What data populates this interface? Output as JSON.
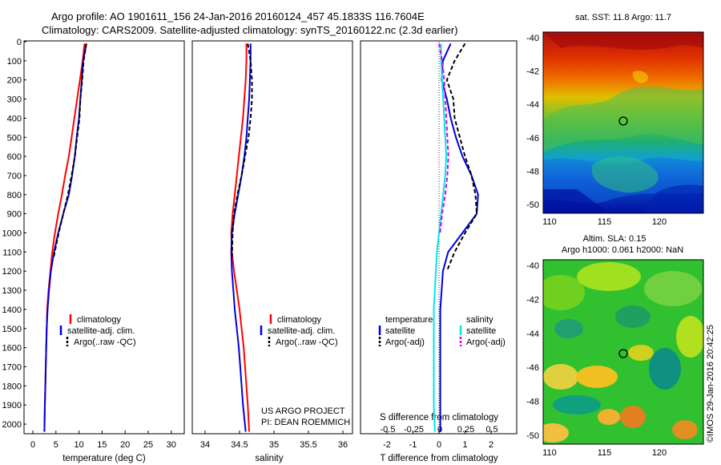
{
  "header": {
    "title_line1": "Argo profile: AO 1901611_156 24-Jan-2016 20160124_457 45.1833S 116.7604E",
    "title_line2": "Climatology: CARS2009. Satellite-adjusted climatology: synTS_20160122.nc (2.3d earlier)"
  },
  "colors": {
    "climatology": "#ff0000",
    "satellite": "#0000dd",
    "argo": "#000000",
    "sal_satellite": "#00e5ee",
    "sal_argo": "#dd00dd"
  },
  "panels": {
    "temperature": {
      "xlabel": "temperature (deg C)",
      "xticks": [
        "0",
        "5",
        "10",
        "15",
        "20",
        "25",
        "30"
      ],
      "legend": [
        "climatology",
        "satellite-adj. clim.",
        "Argo(..raw -QC)"
      ]
    },
    "salinity": {
      "xlabel": "salinity",
      "xticks": [
        "34",
        "34.5",
        "35",
        "35.5",
        "36"
      ],
      "legend": [
        "climatology",
        "satellite-adj. clim.",
        "Argo(..raw -QC)"
      ],
      "credit_line1": "US ARGO PROJECT",
      "credit_line2": "PI: DEAN ROEMMICH"
    },
    "difference": {
      "xlabel": "T difference from climatology",
      "top_label": "S difference from climatology",
      "xticks_T": [
        "-2",
        "-1",
        "0",
        "1",
        "2"
      ],
      "xticks_S": [
        "-0.5",
        "-0.25",
        "0",
        "0.25",
        "0.5"
      ],
      "legend_temperature_title": "temperature",
      "legend_salinity_title": "salinity",
      "legend_items": [
        "satellite",
        "Argo(-adj)",
        "satellite",
        "Argo(-adj)"
      ]
    },
    "depth_ticks": [
      "0",
      "100",
      "200",
      "300",
      "400",
      "500",
      "600",
      "700",
      "800",
      "900",
      "1000",
      "1100",
      "1200",
      "1300",
      "1400",
      "1500",
      "1600",
      "1700",
      "1800",
      "1900",
      "2000"
    ]
  },
  "maps": {
    "sst_title": "sat. SST: 11.8 Argo: 11.7",
    "sla_title_line1": "Altim. SLA: 0.15",
    "sla_title_line2": "Argo h1000: 0.061 h2000: NaN",
    "lat_ticks": [
      "-40",
      "-42",
      "-44",
      "-46",
      "-48",
      "-50"
    ],
    "lon_ticks": [
      "110",
      "115",
      "120"
    ],
    "watermark": "©IMOS 29-Jan-2016 20:42:25"
  },
  "chart_data": [
    {
      "type": "line",
      "xlabel": "temperature (deg C)",
      "ylabel": "",
      "xlim": [
        -1,
        31
      ],
      "ylim": [
        2050,
        0
      ],
      "series": [
        {
          "name": "climatology",
          "x": [
            11.2,
            10.8,
            10.2,
            9.6,
            9.0,
            8.4,
            7.8,
            7.0,
            6.3,
            5.5,
            4.8,
            4.2,
            3.8,
            3.4,
            3.1,
            3.0,
            2.9,
            2.8,
            2.7,
            2.6,
            2.5
          ],
          "y": [
            10,
            100,
            200,
            300,
            400,
            500,
            600,
            700,
            800,
            900,
            1000,
            1100,
            1200,
            1300,
            1400,
            1500,
            1600,
            1700,
            1800,
            1900,
            2040
          ]
        },
        {
          "name": "satellite-adj. clim.",
          "x": [
            11.6,
            10.9,
            10.6,
            10.3,
            10.0,
            9.5,
            9.1,
            8.5,
            7.8,
            6.6,
            5.5,
            4.6,
            3.9,
            3.5,
            3.2,
            3.0,
            2.9,
            2.8,
            2.7,
            2.6,
            2.5
          ],
          "y": [
            10,
            100,
            200,
            300,
            400,
            500,
            600,
            700,
            800,
            900,
            1000,
            1100,
            1200,
            1300,
            1400,
            1500,
            1600,
            1700,
            1800,
            1900,
            2040
          ]
        },
        {
          "name": "Argo(..raw -QC)",
          "x": [
            11.6,
            11.0,
            10.7,
            10.3,
            10.1,
            9.6,
            9.1,
            8.4,
            7.6,
            6.6,
            5.6,
            4.5
          ],
          "y": [
            10,
            100,
            200,
            300,
            400,
            500,
            600,
            700,
            800,
            900,
            1000,
            1130
          ]
        }
      ]
    },
    {
      "type": "line",
      "xlabel": "salinity",
      "ylabel": "",
      "xlim": [
        33.85,
        36.1
      ],
      "ylim": [
        2050,
        0
      ],
      "series": [
        {
          "name": "climatology",
          "x": [
            34.6,
            34.6,
            34.59,
            34.57,
            34.55,
            34.52,
            34.49,
            34.46,
            34.43,
            34.4,
            34.38,
            34.39,
            34.42,
            34.46,
            34.5,
            34.53,
            34.56,
            34.58,
            34.6,
            34.62,
            34.64
          ],
          "y": [
            10,
            100,
            200,
            300,
            400,
            500,
            600,
            700,
            800,
            900,
            1000,
            1100,
            1200,
            1300,
            1400,
            1500,
            1600,
            1700,
            1800,
            1900,
            2040
          ]
        },
        {
          "name": "satellite-adj. clim.",
          "x": [
            34.66,
            34.66,
            34.65,
            34.64,
            34.62,
            34.6,
            34.57,
            34.53,
            34.48,
            34.43,
            34.39,
            34.38,
            34.39,
            34.41,
            34.43,
            34.46,
            34.49,
            34.51,
            34.53,
            34.55,
            34.59
          ],
          "y": [
            10,
            100,
            200,
            300,
            400,
            500,
            600,
            700,
            800,
            900,
            1000,
            1100,
            1200,
            1300,
            1400,
            1500,
            1600,
            1700,
            1800,
            1900,
            2040
          ]
        },
        {
          "name": "Argo(..raw -QC)",
          "x": [
            34.62,
            34.66,
            34.68,
            34.68,
            34.66,
            34.63,
            34.58,
            34.53,
            34.47,
            34.42,
            34.4,
            34.39
          ],
          "y": [
            10,
            100,
            200,
            300,
            400,
            500,
            600,
            700,
            800,
            900,
            1000,
            1130
          ]
        }
      ]
    },
    {
      "type": "line",
      "xlabel": "T difference from climatology",
      "ylabel": "",
      "xlim": [
        -2.5,
        2.5
      ],
      "ylim": [
        2050,
        0
      ],
      "series": [
        {
          "name": "satellite",
          "x": [
            0.45,
            0.15,
            0.1,
            0.3,
            0.45,
            0.65,
            0.9,
            1.25,
            1.5,
            1.45,
            0.9,
            0.35,
            0.15,
            0.1,
            0.05,
            0.05,
            0.05,
            0.05,
            0.05,
            0.05,
            0.05
          ],
          "y": [
            10,
            100,
            200,
            300,
            400,
            500,
            600,
            700,
            800,
            900,
            1000,
            1100,
            1200,
            1300,
            1400,
            1500,
            1600,
            1700,
            1800,
            1900,
            2040
          ]
        },
        {
          "name": "Argo(-adj)",
          "x": [
            1.0,
            0.6,
            0.3,
            0.55,
            0.6,
            0.8,
            1.0,
            1.25,
            1.4,
            1.45,
            1.0,
            0.6,
            0.3
          ],
          "y": [
            10,
            100,
            200,
            300,
            400,
            500,
            600,
            700,
            800,
            900,
            1000,
            1100,
            1200
          ]
        }
      ]
    },
    {
      "type": "line",
      "xlabel": "S difference from climatology",
      "ylabel": "",
      "xlim": [
        -0.625,
        0.625
      ],
      "ylim": [
        2050,
        0
      ],
      "series": [
        {
          "name": "satellite",
          "x": [
            0.02,
            0.02,
            0.03,
            0.04,
            0.05,
            0.06,
            0.07,
            0.06,
            0.04,
            0.02,
            0.0,
            -0.02,
            -0.03,
            -0.04,
            -0.05,
            -0.05,
            -0.05,
            -0.05,
            -0.05,
            -0.05,
            -0.04
          ],
          "y": [
            10,
            100,
            200,
            300,
            400,
            500,
            600,
            700,
            800,
            900,
            1000,
            1100,
            1200,
            1300,
            1400,
            1500,
            1600,
            1700,
            1800,
            1900,
            2040
          ]
        },
        {
          "name": "Argo(-adj)",
          "x": [
            0.0,
            0.03,
            0.05,
            0.06,
            0.07,
            0.08,
            0.09,
            0.08,
            0.06,
            0.03,
            0.01
          ],
          "y": [
            10,
            100,
            200,
            300,
            400,
            500,
            600,
            700,
            800,
            900,
            1000
          ]
        }
      ]
    }
  ]
}
